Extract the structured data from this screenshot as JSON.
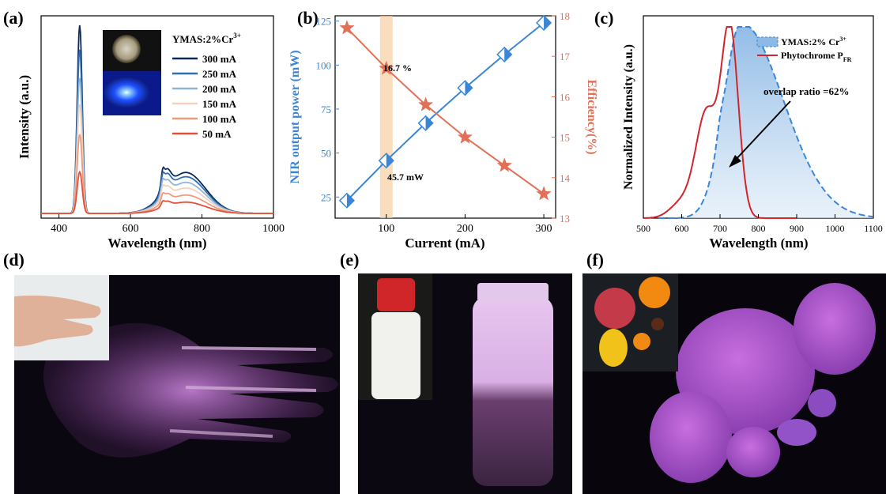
{
  "panels": {
    "a": "(a)",
    "b": "(b)",
    "c": "(c)",
    "d": "(d)",
    "e": "(e)",
    "f": "(f)"
  },
  "chart_data": [
    {
      "panel": "a",
      "type": "line",
      "xlabel": "Wavelength (nm)",
      "ylabel": "Intensity (a.u.)",
      "xlim": [
        350,
        1000
      ],
      "xticks": [
        "400",
        "600",
        "800",
        "1000"
      ],
      "legend_title": "YMAS:2%Cr",
      "legend_title_sup": "3+",
      "legend_position": "top-right",
      "series": [
        {
          "name": "300 mA",
          "color": "#0b2a5a",
          "peak_blue": 1.0,
          "peak_nir": 0.29
        },
        {
          "name": "250 mA",
          "color": "#2f6fae",
          "peak_blue": 0.87,
          "peak_nir": 0.26
        },
        {
          "name": "200 mA",
          "color": "#8cb7dc",
          "peak_blue": 0.72,
          "peak_nir": 0.22
        },
        {
          "name": "150 mA",
          "color": "#f6d2be",
          "peak_blue": 0.58,
          "peak_nir": 0.18
        },
        {
          "name": "100 mA",
          "color": "#f09a7c",
          "peak_blue": 0.42,
          "peak_nir": 0.13
        },
        {
          "name": "50 mA",
          "color": "#e0503a",
          "peak_blue": 0.22,
          "peak_nir": 0.08
        }
      ]
    },
    {
      "panel": "b",
      "type": "line",
      "xlabel": "Current (mA)",
      "ylabel_left": "NIR output power (mW)",
      "ylabel_right": "Efficiency(%)",
      "x": [
        50,
        100,
        150,
        200,
        250,
        300
      ],
      "xlim": [
        35,
        315
      ],
      "xticks": [
        "100",
        "200",
        "300"
      ],
      "ylim_left": [
        13,
        128
      ],
      "yticks_left": [
        "25",
        "50",
        "75",
        "100",
        "125"
      ],
      "ylim_right": [
        13,
        18
      ],
      "yticks_right": [
        "13",
        "14",
        "15",
        "16",
        "17",
        "18"
      ],
      "series": [
        {
          "name": "NIR output power",
          "axis": "left",
          "color": "#3a86d6",
          "values": [
            23,
            45.7,
            67,
            87,
            106,
            124
          ]
        },
        {
          "name": "Efficiency",
          "axis": "right",
          "color": "#e07058",
          "values": [
            17.7,
            16.7,
            15.8,
            15.0,
            14.3,
            13.6
          ]
        }
      ],
      "highlight_x": [
        92,
        108
      ],
      "annotations": [
        "16.7 %",
        "45.7 mW"
      ]
    },
    {
      "panel": "c",
      "type": "area",
      "xlabel": "Wavelength (nm)",
      "ylabel": "Normalized Intensity (a.u.)",
      "xlim": [
        500,
        1100
      ],
      "xticks": [
        "500",
        "600",
        "700",
        "800",
        "900",
        "1000",
        "1100"
      ],
      "legend_position": "top-right",
      "series": [
        {
          "name": "YMAS:2% Cr",
          "name_sup": "3+",
          "color": "#3a86d6"
        },
        {
          "name": "Phytochrome P",
          "name_sub": "FR",
          "color": "#d0252a"
        }
      ],
      "annotation": "overlap ratio =62%"
    }
  ]
}
